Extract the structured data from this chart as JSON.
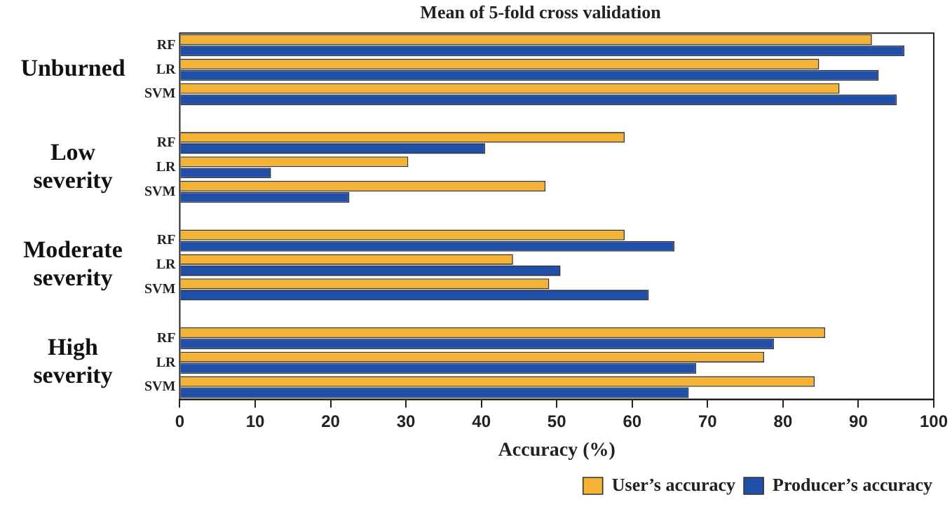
{
  "chart_data": {
    "type": "bar",
    "orientation": "horizontal",
    "title": "Mean of 5-fold cross validation",
    "xlabel": "Accuracy (%)",
    "categories": [
      "RF",
      "LR",
      "SVM",
      null,
      "RF",
      "LR",
      "SVM",
      null,
      "RF",
      "LR",
      "SVM",
      null,
      "RF",
      "LR",
      "SVM"
    ],
    "series": [
      {
        "name": "User’s accuracy",
        "color": "#f5b335",
        "values": [
          91.8,
          84.8,
          87.5,
          null,
          59.0,
          30.3,
          48.5,
          null,
          59.0,
          44.2,
          49.0,
          null,
          85.6,
          77.5,
          84.2
        ]
      },
      {
        "name": "Producer’s accuracy",
        "color": "#1f4fa8",
        "values": [
          96.1,
          92.7,
          95.1,
          null,
          40.5,
          12.1,
          22.5,
          null,
          65.6,
          50.5,
          62.2,
          null,
          78.8,
          68.5,
          67.5
        ]
      }
    ],
    "annotations": [
      "Unburned",
      "Low severity",
      "Moderate severity",
      "High severity"
    ],
    "xlim": [
      0,
      100
    ],
    "xticks": [
      0,
      10,
      20,
      30,
      40,
      50,
      60,
      70,
      80,
      90,
      100
    ],
    "grid": false,
    "legend": "bottom right"
  }
}
